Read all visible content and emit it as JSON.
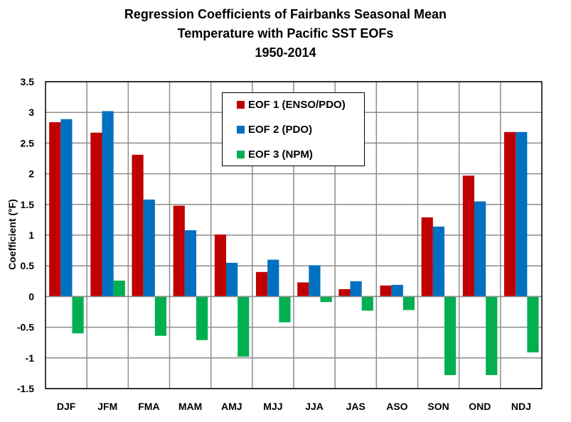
{
  "chart_data": {
    "type": "bar",
    "title": [
      "Regression Coefficients of Fairbanks Seasonal Mean",
      "Temperature with Pacific SST EOFs",
      "1950-2014"
    ],
    "xlabel": "",
    "ylabel": "Coefficient (°F)",
    "ylim": [
      -1.5,
      3.5
    ],
    "yticks": [
      "3.5",
      "3",
      "2.5",
      "2",
      "1.5",
      "1",
      "0.5",
      "0",
      "-0.5",
      "-1",
      "-1.5"
    ],
    "grid": true,
    "legend_position": "top-center",
    "categories": [
      "DJF",
      "JFM",
      "FMA",
      "MAM",
      "AMJ",
      "MJJ",
      "JJA",
      "JAS",
      "ASO",
      "SON",
      "OND",
      "NDJ"
    ],
    "series": [
      {
        "name": "EOF 1 (ENSO/PDO)",
        "color": "#C00000",
        "values": [
          2.84,
          2.67,
          2.31,
          1.48,
          1.01,
          0.4,
          0.23,
          0.12,
          0.18,
          1.29,
          1.97,
          2.68
        ]
      },
      {
        "name": "EOF 2 (PDO)",
        "color": "#0070C0",
        "values": [
          2.89,
          3.02,
          1.58,
          1.08,
          0.55,
          0.6,
          0.51,
          0.25,
          0.19,
          1.14,
          1.55,
          2.68
        ]
      },
      {
        "name": "EOF 3 (NPM)",
        "color": "#00B050",
        "values": [
          -0.6,
          0.26,
          -0.64,
          -0.71,
          -0.98,
          -0.42,
          -0.09,
          -0.23,
          -0.22,
          -1.28,
          -1.28,
          -0.91
        ]
      }
    ]
  }
}
